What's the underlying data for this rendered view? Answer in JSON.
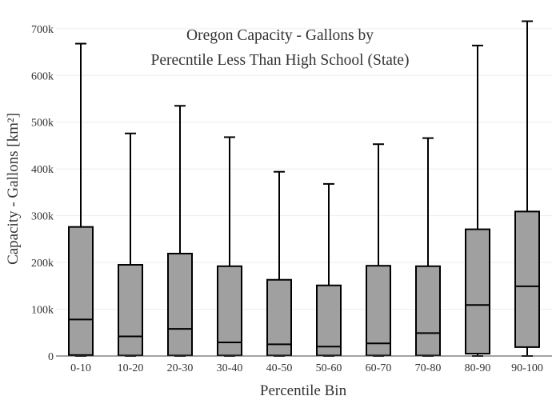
{
  "chart_data": {
    "type": "box",
    "title_lines": [
      "Oregon Capacity - Gallons by",
      "Perecntile Less Than High School (State)"
    ],
    "xlabel": "Percentile Bin",
    "ylabel": "Capacity - Gallons  [km²]",
    "ylim": [
      0,
      710000
    ],
    "yticks": [
      0,
      100000,
      200000,
      300000,
      400000,
      500000,
      600000,
      700000
    ],
    "ytick_labels": [
      "0",
      "100k",
      "200k",
      "300k",
      "400k",
      "500k",
      "600k",
      "700k"
    ],
    "grid": true,
    "categories": [
      "0-10",
      "10-20",
      "20-30",
      "30-40",
      "40-50",
      "50-60",
      "60-70",
      "70-80",
      "80-90",
      "90-100"
    ],
    "boxes": [
      {
        "min": 0,
        "q1": 2000,
        "median": 78000,
        "q3": 276000,
        "max": 668000
      },
      {
        "min": 0,
        "q1": 1000,
        "median": 42000,
        "q3": 195000,
        "max": 476000
      },
      {
        "min": 0,
        "q1": 1000,
        "median": 58000,
        "q3": 219000,
        "max": 535000
      },
      {
        "min": 0,
        "q1": 1000,
        "median": 29000,
        "q3": 192000,
        "max": 468000
      },
      {
        "min": 0,
        "q1": 1000,
        "median": 25000,
        "q3": 163000,
        "max": 394000
      },
      {
        "min": 0,
        "q1": 1000,
        "median": 20000,
        "q3": 151000,
        "max": 368000
      },
      {
        "min": 0,
        "q1": 1000,
        "median": 27000,
        "q3": 193000,
        "max": 453000
      },
      {
        "min": 0,
        "q1": 1000,
        "median": 49000,
        "q3": 192000,
        "max": 466000
      },
      {
        "min": 0,
        "q1": 5000,
        "median": 109000,
        "q3": 271000,
        "max": 664000
      },
      {
        "min": 0,
        "q1": 19000,
        "median": 149000,
        "q3": 309000,
        "max": 716000
      }
    ],
    "box_fill": "#a0a0a0",
    "box_stroke": "#000000"
  }
}
